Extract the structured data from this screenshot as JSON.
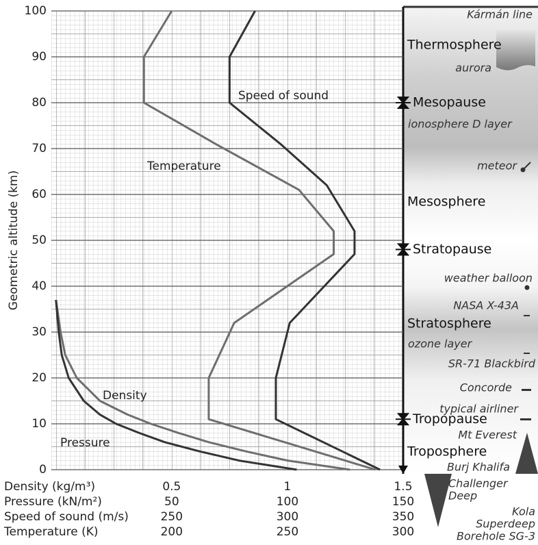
{
  "chart_data": {
    "type": "line",
    "y_label": "Geometric altitude (km)",
    "ylim": [
      0,
      100
    ],
    "yticks": [
      0,
      10,
      20,
      30,
      40,
      50,
      60,
      70,
      80,
      90,
      100
    ],
    "grid": true,
    "x_axes": [
      {
        "name": "Density (kg/m³)",
        "color": "#666666",
        "xlim": [
          -0.02,
          1.5
        ],
        "xticks": [
          0.5,
          1,
          1.5
        ]
      },
      {
        "name": "Pressure (kN/m²)",
        "color": "#222222",
        "xlim": [
          -2,
          150
        ],
        "xticks": [
          50,
          100,
          150
        ]
      },
      {
        "name": "Speed of sound (m/s)",
        "color": "#222222",
        "xlim": [
          198,
          350
        ],
        "xticks": [
          250,
          300,
          350
        ]
      },
      {
        "name": "Temperature (K)",
        "color": "#666666",
        "xlim": [
          148,
          300
        ],
        "xticks": [
          200,
          250,
          300
        ]
      }
    ],
    "series": [
      {
        "name": "Speed of sound",
        "color": "#333333",
        "axis": 2,
        "values": [
          340,
          295,
          295,
          301,
          329,
          329,
          317,
          297,
          275,
          275,
          286
        ],
        "y": [
          0,
          11,
          20,
          32,
          47,
          52,
          62,
          71,
          80,
          90,
          100
        ]
      },
      {
        "name": "Temperature",
        "color": "#6e6e6e",
        "axis": 3,
        "values": [
          288,
          216,
          216,
          227,
          270,
          270,
          255,
          219,
          188,
          188,
          200
        ],
        "y": [
          0,
          11,
          20,
          32,
          47,
          52,
          61,
          71,
          80,
          90,
          100
        ]
      },
      {
        "name": "Density",
        "color": "#6e6e6e",
        "axis": 0,
        "values": [
          1.27,
          1.0,
          0.82,
          0.66,
          0.53,
          0.41,
          0.31,
          0.19,
          0.09,
          0.04,
          0.02,
          0
        ],
        "y": [
          0,
          2,
          4,
          6,
          8,
          10,
          12,
          15,
          20,
          25,
          30,
          37
        ]
      },
      {
        "name": "Pressure",
        "color": "#333333",
        "axis": 1,
        "values": [
          104,
          79,
          62,
          47,
          36,
          26,
          19,
          12,
          5.5,
          2.5,
          1.2,
          0
        ],
        "y": [
          0,
          2,
          4,
          6,
          8,
          10,
          12,
          15,
          20,
          25,
          30,
          37
        ]
      }
    ],
    "boundaries": [
      {
        "name": "Mesopause",
        "altitude": 80
      },
      {
        "name": "Stratopause",
        "altitude": 48
      },
      {
        "name": "Tropopause",
        "altitude": 11
      }
    ],
    "layers": [
      "Thermosphere",
      "Mesosphere",
      "Stratosphere",
      "Troposphere"
    ],
    "annotations": [
      "Kármán line",
      "aurora",
      "ionosphere D layer",
      "meteor",
      "weather balloon",
      "NASA X-43A",
      "ozone layer",
      "SR-71 Blackbird",
      "Concorde",
      "typical airliner",
      "Mt Everest",
      "Burj Khalifa",
      [
        "Challenger",
        "Deep"
      ],
      [
        "Kola",
        "Superdeep",
        "Borehole SG-3"
      ]
    ]
  }
}
